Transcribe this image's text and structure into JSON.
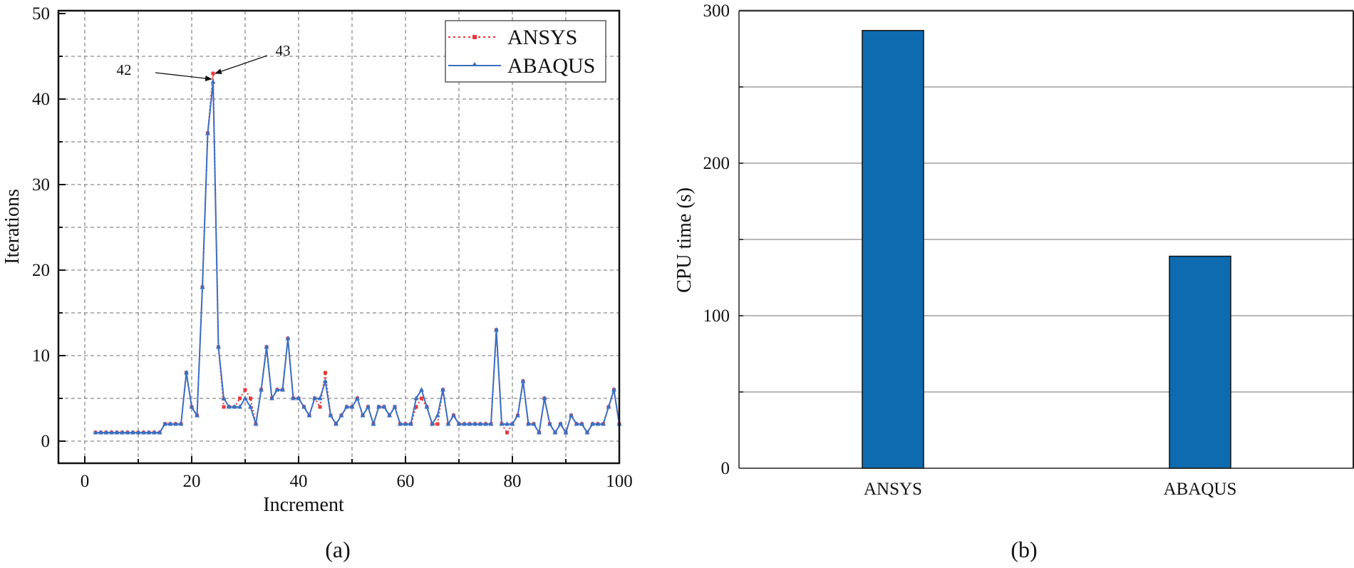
{
  "figure": {
    "caption_a": "(a)",
    "caption_b": "(b)"
  },
  "chart_data": [
    {
      "type": "line",
      "panel": "(a)",
      "title": "",
      "xlabel": "Increment",
      "ylabel": "Iterations",
      "xlim": [
        -5,
        100
      ],
      "ylim": [
        -2.5,
        50
      ],
      "xticks": [
        0,
        20,
        40,
        60,
        80,
        100
      ],
      "yticks": [
        0,
        10,
        20,
        30,
        40,
        50
      ],
      "grid": true,
      "legend_position": "upper right",
      "legend": [
        "ANSYS",
        "ABAQUS"
      ],
      "x": [
        2,
        3,
        4,
        5,
        6,
        7,
        8,
        9,
        10,
        11,
        12,
        13,
        14,
        15,
        16,
        17,
        18,
        19,
        20,
        21,
        22,
        23,
        24,
        25,
        26,
        27,
        28,
        29,
        30,
        31,
        32,
        33,
        34,
        35,
        36,
        37,
        38,
        39,
        40,
        41,
        42,
        43,
        44,
        45,
        46,
        47,
        48,
        49,
        50,
        51,
        52,
        53,
        54,
        55,
        56,
        57,
        58,
        59,
        60,
        61,
        62,
        63,
        64,
        65,
        66,
        67,
        68,
        69,
        70,
        71,
        72,
        73,
        74,
        75,
        76,
        77,
        78,
        79,
        80,
        81,
        82,
        83,
        84,
        85,
        86,
        87,
        88,
        89,
        90,
        91,
        92,
        93,
        94,
        95,
        96,
        97,
        98,
        99,
        100
      ],
      "series": [
        {
          "name": "ANSYS",
          "color": "#e8383d",
          "style": "dotted",
          "marker": "square",
          "values": [
            1,
            1,
            1,
            1,
            1,
            1,
            1,
            1,
            1,
            1,
            1,
            1,
            1,
            2,
            2,
            2,
            2,
            8,
            4,
            3,
            18,
            36,
            43,
            11,
            4,
            4,
            4,
            5,
            6,
            5,
            2,
            6,
            11,
            5,
            6,
            6,
            12,
            5,
            5,
            4,
            3,
            5,
            4,
            8,
            3,
            2,
            3,
            4,
            4,
            5,
            3,
            4,
            2,
            4,
            4,
            3,
            4,
            2,
            2,
            2,
            4,
            5,
            4,
            2,
            2,
            6,
            2,
            3,
            2,
            2,
            2,
            2,
            2,
            2,
            2,
            13,
            2,
            1,
            2,
            3,
            7,
            2,
            2,
            1,
            5,
            2,
            1,
            2,
            1,
            3,
            2,
            2,
            1,
            2,
            2,
            2,
            4,
            6,
            2
          ]
        },
        {
          "name": "ABAQUS",
          "color": "#3b6fc2",
          "style": "solid",
          "marker": "triangle",
          "values": [
            1,
            1,
            1,
            1,
            1,
            1,
            1,
            1,
            1,
            1,
            1,
            1,
            1,
            2,
            2,
            2,
            2,
            8,
            4,
            3,
            18,
            36,
            42,
            11,
            5,
            4,
            4,
            4,
            5,
            4,
            2,
            6,
            11,
            5,
            6,
            6,
            12,
            5,
            5,
            4,
            3,
            5,
            5,
            7,
            3,
            2,
            3,
            4,
            4,
            5,
            3,
            4,
            2,
            4,
            4,
            3,
            4,
            2,
            2,
            2,
            5,
            6,
            4,
            2,
            3,
            6,
            2,
            3,
            2,
            2,
            2,
            2,
            2,
            2,
            2,
            13,
            2,
            2,
            2,
            3,
            7,
            2,
            2,
            1,
            5,
            2,
            1,
            2,
            1,
            3,
            2,
            2,
            1,
            2,
            2,
            2,
            4,
            6,
            2
          ]
        }
      ],
      "annotations": [
        {
          "text": "42",
          "target_x": 24,
          "target_y": 42,
          "series": "ABAQUS"
        },
        {
          "text": "43",
          "target_x": 24,
          "target_y": 43,
          "series": "ANSYS"
        }
      ]
    },
    {
      "type": "bar",
      "panel": "(b)",
      "title": "",
      "xlabel": "",
      "ylabel": "CPU time (s)",
      "categories": [
        "ANSYS",
        "ABAQUS"
      ],
      "values": [
        287,
        139
      ],
      "ylim": [
        0,
        300
      ],
      "yticks": [
        0,
        100,
        200,
        300
      ],
      "grid": true,
      "bar_color": "#0e6bb0"
    }
  ]
}
